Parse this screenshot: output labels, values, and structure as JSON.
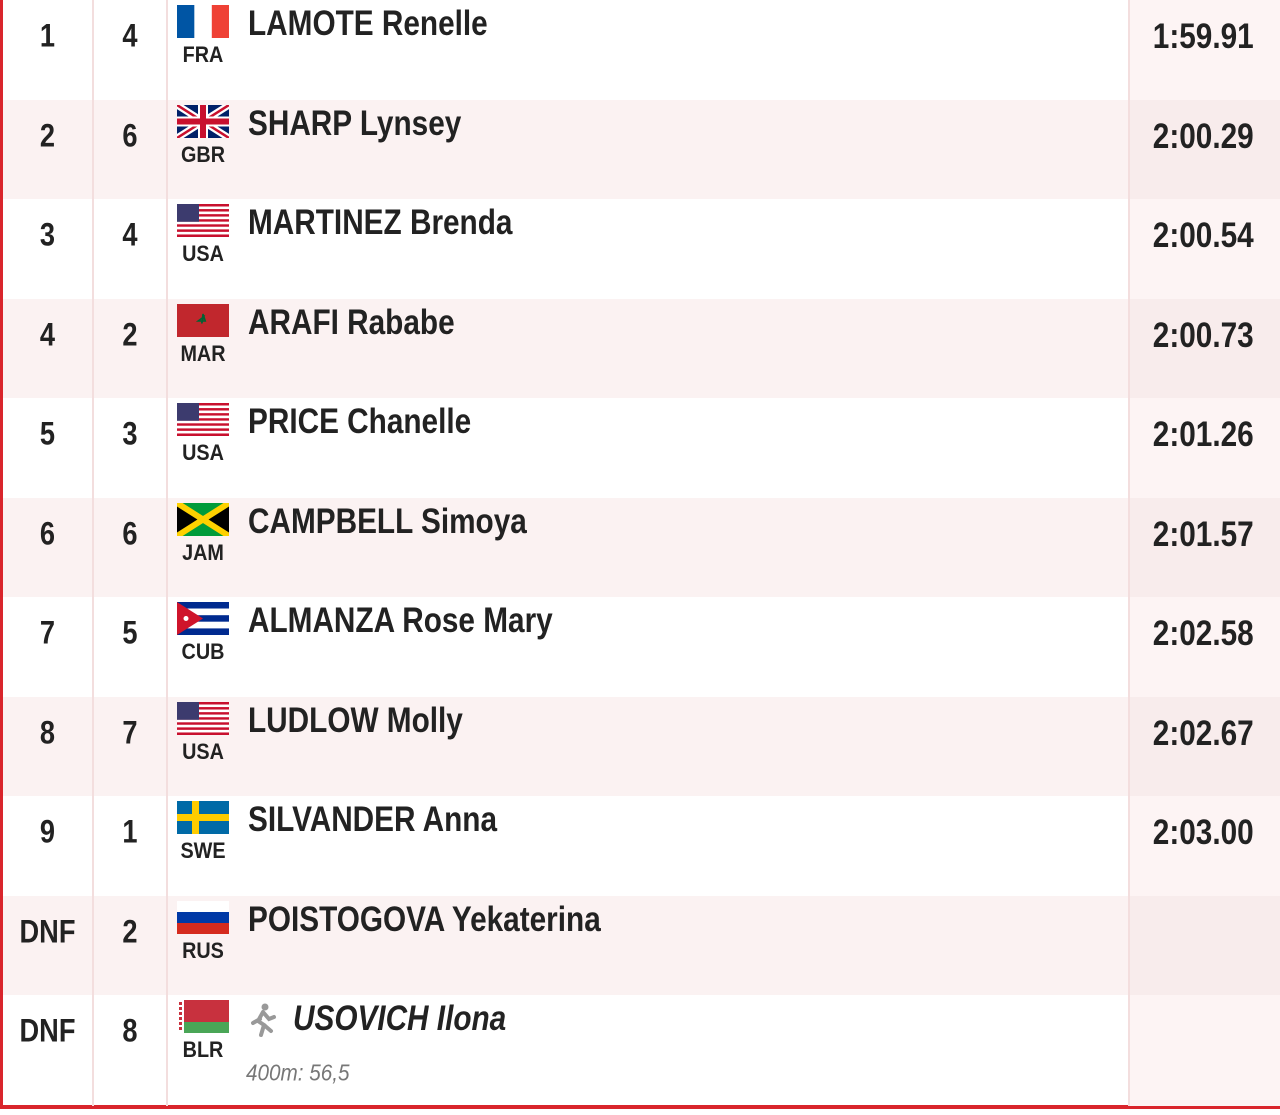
{
  "table": {
    "rows": [
      {
        "rank": "1",
        "lane": "4",
        "country": "FRA",
        "name": "LAMOTE Renelle",
        "time": "1:59.91"
      },
      {
        "rank": "2",
        "lane": "6",
        "country": "GBR",
        "name": "SHARP Lynsey",
        "time": "2:00.29"
      },
      {
        "rank": "3",
        "lane": "4",
        "country": "USA",
        "name": "MARTINEZ Brenda",
        "time": "2:00.54"
      },
      {
        "rank": "4",
        "lane": "2",
        "country": "MAR",
        "name": "ARAFI Rababe",
        "time": "2:00.73"
      },
      {
        "rank": "5",
        "lane": "3",
        "country": "USA",
        "name": "PRICE Chanelle",
        "time": "2:01.26"
      },
      {
        "rank": "6",
        "lane": "6",
        "country": "JAM",
        "name": "CAMPBELL Simoya",
        "time": "2:01.57"
      },
      {
        "rank": "7",
        "lane": "5",
        "country": "CUB",
        "name": "ALMANZA Rose Mary",
        "time": "2:02.58"
      },
      {
        "rank": "8",
        "lane": "7",
        "country": "USA",
        "name": "LUDLOW Molly",
        "time": "2:02.67"
      },
      {
        "rank": "9",
        "lane": "1",
        "country": "SWE",
        "name": "SILVANDER Anna",
        "time": "2:03.00"
      },
      {
        "rank": "DNF",
        "lane": "2",
        "country": "RUS",
        "name": "POISTOGOVA Yekaterina"
      },
      {
        "rank": "DNF",
        "lane": "8",
        "country": "BLR",
        "name": "USOVICH Ilona",
        "note": "400m: 56,5"
      }
    ]
  }
}
